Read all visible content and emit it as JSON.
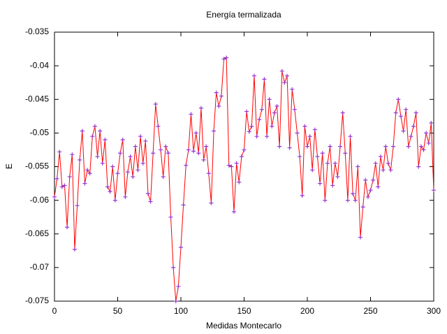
{
  "chart_data": {
    "type": "line",
    "title": "Energía termalizada",
    "x_label": "Medidas Montecarlo",
    "y_label": "E",
    "x": [
      0,
      2,
      4,
      6,
      8,
      10,
      12,
      14,
      16,
      18,
      20,
      22,
      24,
      26,
      28,
      30,
      32,
      34,
      36,
      38,
      40,
      42,
      44,
      46,
      48,
      50,
      52,
      54,
      56,
      58,
      60,
      62,
      64,
      66,
      68,
      70,
      72,
      74,
      76,
      78,
      80,
      82,
      84,
      86,
      88,
      90,
      92,
      94,
      96,
      98,
      100,
      102,
      104,
      106,
      108,
      110,
      112,
      114,
      116,
      118,
      120,
      122,
      124,
      126,
      128,
      130,
      132,
      134,
      136,
      138,
      140,
      142,
      144,
      146,
      148,
      150,
      152,
      154,
      156,
      158,
      160,
      162,
      164,
      166,
      168,
      170,
      172,
      174,
      176,
      178,
      180,
      182,
      184,
      186,
      188,
      190,
      192,
      194,
      196,
      198,
      200,
      202,
      204,
      206,
      208,
      210,
      212,
      214,
      216,
      218,
      220,
      222,
      224,
      226,
      228,
      230,
      232,
      234,
      236,
      238,
      240,
      242,
      244,
      246,
      248,
      250,
      252,
      254,
      256,
      258,
      260,
      262,
      264,
      266,
      268,
      270,
      272,
      274,
      276,
      278,
      280,
      282,
      284,
      286,
      288,
      290,
      292,
      294,
      296,
      298,
      300
    ],
    "values": [
      -0.0595,
      -0.0568,
      -0.0528,
      -0.058,
      -0.0578,
      -0.064,
      -0.0565,
      -0.0532,
      -0.0673,
      -0.0608,
      -0.054,
      -0.0497,
      -0.0575,
      -0.0555,
      -0.056,
      -0.0505,
      -0.049,
      -0.0535,
      -0.0497,
      -0.0545,
      -0.051,
      -0.058,
      -0.0587,
      -0.055,
      -0.06,
      -0.056,
      -0.053,
      -0.051,
      -0.0595,
      -0.0558,
      -0.0535,
      -0.0565,
      -0.052,
      -0.0555,
      -0.0505,
      -0.0545,
      -0.0512,
      -0.059,
      -0.0602,
      -0.053,
      -0.0457,
      -0.049,
      -0.0525,
      -0.0565,
      -0.052,
      -0.053,
      -0.0625,
      -0.07,
      -0.075,
      -0.0728,
      -0.067,
      -0.0607,
      -0.0548,
      -0.0525,
      -0.0472,
      -0.0527,
      -0.05,
      -0.053,
      -0.0463,
      -0.054,
      -0.052,
      -0.056,
      -0.0604,
      -0.0497,
      -0.044,
      -0.046,
      -0.0445,
      -0.039,
      -0.0388,
      -0.0548,
      -0.055,
      -0.0617,
      -0.0545,
      -0.0573,
      -0.0535,
      -0.0525,
      -0.0468,
      -0.0498,
      -0.049,
      -0.0415,
      -0.0505,
      -0.048,
      -0.0465,
      -0.042,
      -0.0505,
      -0.045,
      -0.049,
      -0.047,
      -0.046,
      -0.052,
      -0.0408,
      -0.0425,
      -0.0415,
      -0.0522,
      -0.0435,
      -0.0465,
      -0.05,
      -0.0535,
      -0.0593,
      -0.049,
      -0.052,
      -0.0505,
      -0.0555,
      -0.0495,
      -0.0535,
      -0.0575,
      -0.053,
      -0.06,
      -0.0545,
      -0.052,
      -0.0578,
      -0.0545,
      -0.0565,
      -0.052,
      -0.047,
      -0.053,
      -0.06,
      -0.0505,
      -0.059,
      -0.06,
      -0.055,
      -0.0655,
      -0.061,
      -0.057,
      -0.0595,
      -0.0585,
      -0.057,
      -0.0545,
      -0.058,
      -0.0535,
      -0.0555,
      -0.052,
      -0.0545,
      -0.0555,
      -0.052,
      -0.047,
      -0.045,
      -0.0475,
      -0.0497,
      -0.0465,
      -0.052,
      -0.0505,
      -0.049,
      -0.047,
      -0.055,
      -0.052,
      -0.0525,
      -0.05,
      -0.0515,
      -0.0485,
      -0.0585
    ],
    "color": "#ff0000",
    "marker_color": "#9933cc",
    "xlim": [
      0,
      300
    ],
    "xticks": [
      0,
      50,
      100,
      150,
      200,
      250,
      300
    ],
    "ylim": [
      -0.075,
      -0.035
    ],
    "yticks": [
      -0.075,
      -0.07,
      -0.065,
      -0.06,
      -0.055,
      -0.05,
      -0.045,
      -0.04,
      -0.035
    ]
  }
}
